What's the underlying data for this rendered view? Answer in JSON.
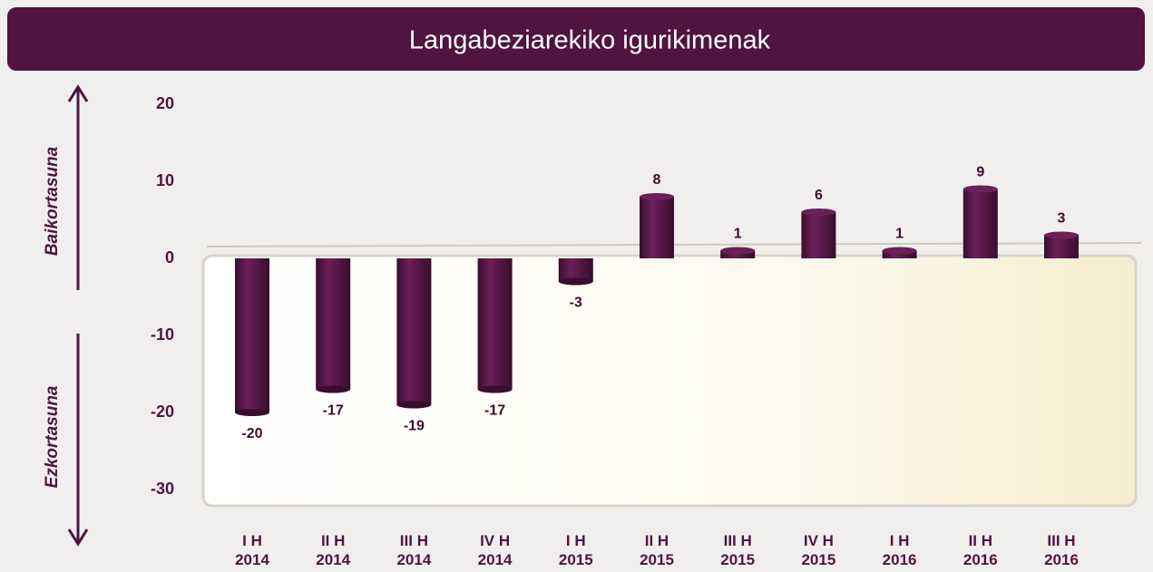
{
  "chart_data": {
    "type": "bar",
    "title": "Langabeziarekiko igurikimenak",
    "annotations": [
      "Baikortasuna",
      "Ezkortasuna"
    ],
    "categories": [
      "I H 2014",
      "II H 2014",
      "III H 2014",
      "IV H 2014",
      "I H 2015",
      "II H 2015",
      "III H 2015",
      "IV H 2015",
      "I H 2016",
      "II H 2016",
      "III H 2016"
    ],
    "values": [
      -20,
      -17,
      -19,
      -17,
      -3,
      8,
      1,
      6,
      1,
      9,
      3
    ],
    "color": "#4f1440",
    "ylim": [
      -30,
      20
    ],
    "yticks": [
      -30,
      -20,
      -10,
      0,
      10,
      20
    ],
    "grid": false
  }
}
